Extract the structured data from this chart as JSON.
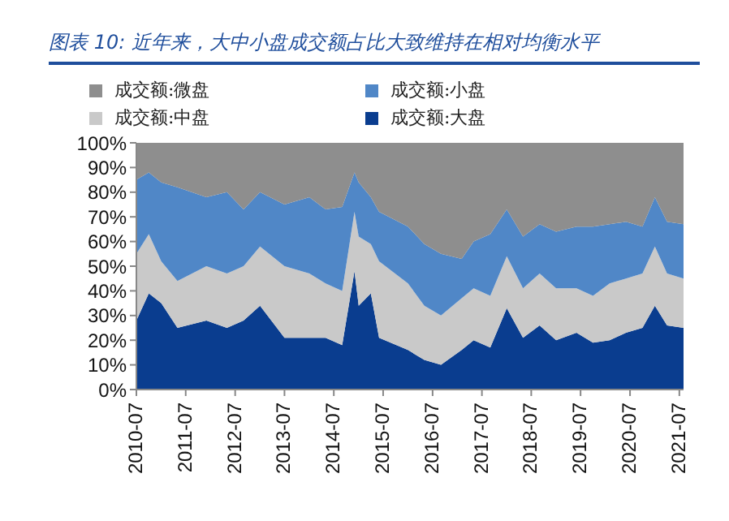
{
  "chart_data": {
    "type": "area",
    "stacked": true,
    "title": "图表 10: 近年来，大中小盘成交额占比大致维持在相对均衡水平",
    "x": [
      "2010-07",
      "2010-10",
      "2011-01",
      "2011-05",
      "2011-12",
      "2012-05",
      "2012-09",
      "2013-01",
      "2013-07",
      "2014-01",
      "2014-05",
      "2014-09",
      "2014-12",
      "2015-01",
      "2015-04",
      "2015-06",
      "2016-01",
      "2016-05",
      "2016-09",
      "2017-02",
      "2017-05",
      "2017-09",
      "2018-01",
      "2018-05",
      "2018-09",
      "2019-01",
      "2019-06",
      "2019-10",
      "2020-02",
      "2020-06",
      "2020-10",
      "2021-01",
      "2021-04",
      "2021-08"
    ],
    "series": [
      {
        "name": "成交额:大盘",
        "color": "#0a3d8f",
        "values": [
          28,
          39,
          35,
          25,
          28,
          25,
          28,
          34,
          21,
          21,
          21,
          18,
          48,
          34,
          39,
          21,
          16,
          12,
          10,
          16,
          20,
          17,
          33,
          21,
          26,
          20,
          23,
          19,
          20,
          23,
          25,
          34,
          26,
          25
        ]
      },
      {
        "name": "成交额:中盘",
        "color": "#c9c9c9",
        "values": [
          27,
          24,
          17,
          19,
          22,
          22,
          22,
          24,
          29,
          26,
          22,
          22,
          24,
          28,
          20,
          31,
          27,
          22,
          20,
          21,
          21,
          21,
          21,
          20,
          21,
          21,
          18,
          19,
          23,
          22,
          22,
          24,
          21,
          20
        ]
      },
      {
        "name": "成交额:小盘",
        "color": "#5087c7",
        "values": [
          30,
          25,
          32,
          38,
          28,
          33,
          23,
          22,
          25,
          31,
          30,
          34,
          16,
          22,
          19,
          20,
          23,
          25,
          25,
          16,
          19,
          25,
          19,
          21,
          20,
          23,
          25,
          28,
          24,
          23,
          19,
          20,
          21,
          22
        ]
      },
      {
        "name": "成交额:微盘",
        "color": "#8e8e8e",
        "values": [
          15,
          12,
          16,
          18,
          22,
          20,
          27,
          20,
          25,
          22,
          27,
          26,
          12,
          16,
          22,
          28,
          34,
          41,
          45,
          47,
          40,
          37,
          27,
          38,
          33,
          36,
          34,
          34,
          33,
          32,
          34,
          22,
          32,
          33
        ]
      }
    ],
    "xlim": [
      "2010-07",
      "2021-08"
    ],
    "xticks": [
      "2010-07",
      "2011-07",
      "2012-07",
      "2013-07",
      "2014-07",
      "2015-07",
      "2016-07",
      "2017-07",
      "2018-07",
      "2019-07",
      "2020-07",
      "2021-07"
    ],
    "ylim": [
      0,
      100
    ],
    "yticks": [
      {
        "value": 0,
        "label": "0%"
      },
      {
        "value": 10,
        "label": "10%"
      },
      {
        "value": 20,
        "label": "20%"
      },
      {
        "value": 30,
        "label": "30%"
      },
      {
        "value": 40,
        "label": "40%"
      },
      {
        "value": 50,
        "label": "50%"
      },
      {
        "value": 60,
        "label": "60%"
      },
      {
        "value": 70,
        "label": "70%"
      },
      {
        "value": 80,
        "label": "80%"
      },
      {
        "value": 90,
        "label": "90%"
      },
      {
        "value": 100,
        "label": "100%"
      }
    ],
    "grid": false,
    "legend": "top"
  }
}
